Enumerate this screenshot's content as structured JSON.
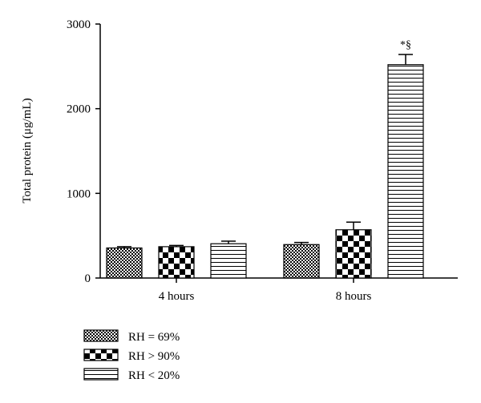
{
  "chart_data": {
    "type": "bar",
    "title": "",
    "xlabel": "",
    "ylabel": "Total protein (μg/mL)",
    "ylim": [
      0,
      3000
    ],
    "yticks": [
      0,
      1000,
      2000,
      3000
    ],
    "grid": false,
    "legend_position": "bottom-left",
    "categories": [
      "4 hours",
      "8 hours"
    ],
    "series": [
      {
        "name": "RH = 69%",
        "pattern": "small-checker",
        "values": [
          355,
          395
        ],
        "errors": [
          15,
          25
        ]
      },
      {
        "name": "RH > 90%",
        "pattern": "large-checker",
        "values": [
          370,
          570
        ],
        "errors": [
          15,
          90
        ]
      },
      {
        "name": "RH < 20%",
        "pattern": "horizontal-lines",
        "values": [
          405,
          2520
        ],
        "errors": [
          30,
          120
        ]
      }
    ],
    "annotations": [
      {
        "series": 2,
        "category": 1,
        "text": "*§"
      }
    ],
    "colors": {
      "ink": "#000000",
      "background": "#ffffff"
    }
  }
}
